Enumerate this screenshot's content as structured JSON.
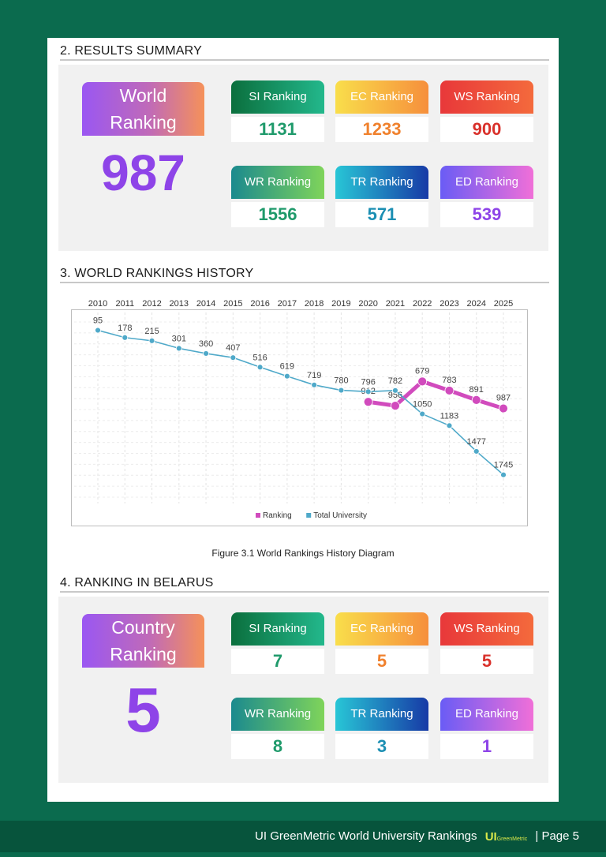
{
  "results": {
    "title": "2. RESULTS SUMMARY",
    "world_label_line1": "World",
    "world_label_line2": "Ranking",
    "world_value": "987",
    "cards": [
      {
        "label": "SI Ranking",
        "value": "1131"
      },
      {
        "label": "EC Ranking",
        "value": "1233"
      },
      {
        "label": "WS Ranking",
        "value": "900"
      },
      {
        "label": "WR Ranking",
        "value": "1556"
      },
      {
        "label": "TR Ranking",
        "value": "571"
      },
      {
        "label": "ED Ranking",
        "value": "539"
      }
    ]
  },
  "history": {
    "title": "3. WORLD RANKINGS HISTORY",
    "caption": "Figure 3.1 World Rankings History Diagram"
  },
  "chart_data": {
    "type": "line",
    "x": [
      "2010",
      "2011",
      "2012",
      "2013",
      "2014",
      "2015",
      "2016",
      "2017",
      "2018",
      "2019",
      "2020",
      "2021",
      "2022",
      "2023",
      "2024",
      "2025"
    ],
    "series": [
      {
        "name": "Ranking",
        "color": "#d14bbd",
        "values": [
          null,
          null,
          null,
          null,
          null,
          null,
          null,
          null,
          null,
          null,
          912,
          956,
          679,
          783,
          891,
          987
        ]
      },
      {
        "name": "Total University",
        "color": "#4fa9c9",
        "values": [
          95,
          178,
          215,
          301,
          360,
          407,
          516,
          619,
          719,
          780,
          796,
          782,
          1050,
          1183,
          1477,
          1745
        ]
      }
    ],
    "ylim": [
      0,
      2000
    ],
    "y_inverted": true,
    "grid": true,
    "legend": "bottom"
  },
  "belarus": {
    "title": "4. RANKING IN BELARUS",
    "country_label_line1": "Country",
    "country_label_line2": "Ranking",
    "country_value": "5",
    "cards": [
      {
        "label": "SI Ranking",
        "value": "7"
      },
      {
        "label": "EC Ranking",
        "value": "5"
      },
      {
        "label": "WS Ranking",
        "value": "5"
      },
      {
        "label": "WR Ranking",
        "value": "8"
      },
      {
        "label": "TR Ranking",
        "value": "3"
      },
      {
        "label": "ED Ranking",
        "value": "1"
      }
    ]
  },
  "footer": {
    "text": "UI GreenMetric World University Rankings",
    "logo_text": "UI",
    "logo_sub": "GreenMetric",
    "page": "| Page 5"
  }
}
